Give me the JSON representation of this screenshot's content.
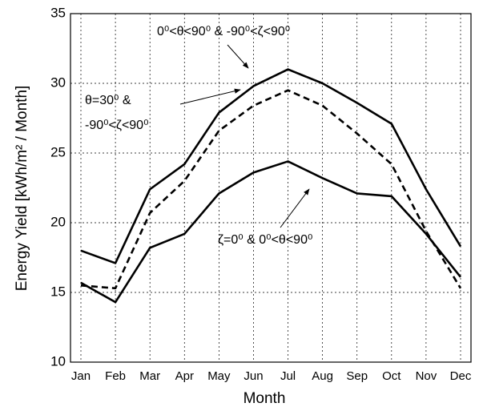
{
  "chart_data": {
    "type": "line",
    "xlabel": "Month",
    "ylabel": "Energy Yield [kWh/m² / Month]",
    "categories": [
      "Jan",
      "Feb",
      "Mar",
      "Apr",
      "May",
      "Jun",
      "Jul",
      "Aug",
      "Sep",
      "Oct",
      "Nov",
      "Dec"
    ],
    "ylim": [
      10,
      35
    ],
    "yticks": [
      10,
      15,
      20,
      25,
      30,
      35
    ],
    "grid": true,
    "series": [
      {
        "color": "#000000",
        "linestyle": "solid",
        "values": [
          18.0,
          17.1,
          22.4,
          24.2,
          27.9,
          29.8,
          31.0,
          30.0,
          28.6,
          27.1,
          22.4,
          18.3
        ]
      },
      {
        "color": "#000000",
        "linestyle": "dashed",
        "values": [
          15.5,
          15.3,
          20.7,
          23.0,
          26.6,
          28.4,
          29.5,
          28.4,
          26.4,
          24.2,
          19.4,
          15.3
        ]
      },
      {
        "color": "#000000",
        "linestyle": "solid",
        "values": [
          15.7,
          14.3,
          18.2,
          19.2,
          22.1,
          23.6,
          24.4,
          23.2,
          22.1,
          21.9,
          19.2,
          16.1
        ]
      }
    ],
    "annotations": [
      "0⁰<θ<90⁰ & -90⁰<ζ<90⁰",
      "θ=30⁰ &",
      "-90⁰<ζ<90⁰",
      "ζ=0⁰ & 0⁰<θ<90⁰"
    ]
  }
}
